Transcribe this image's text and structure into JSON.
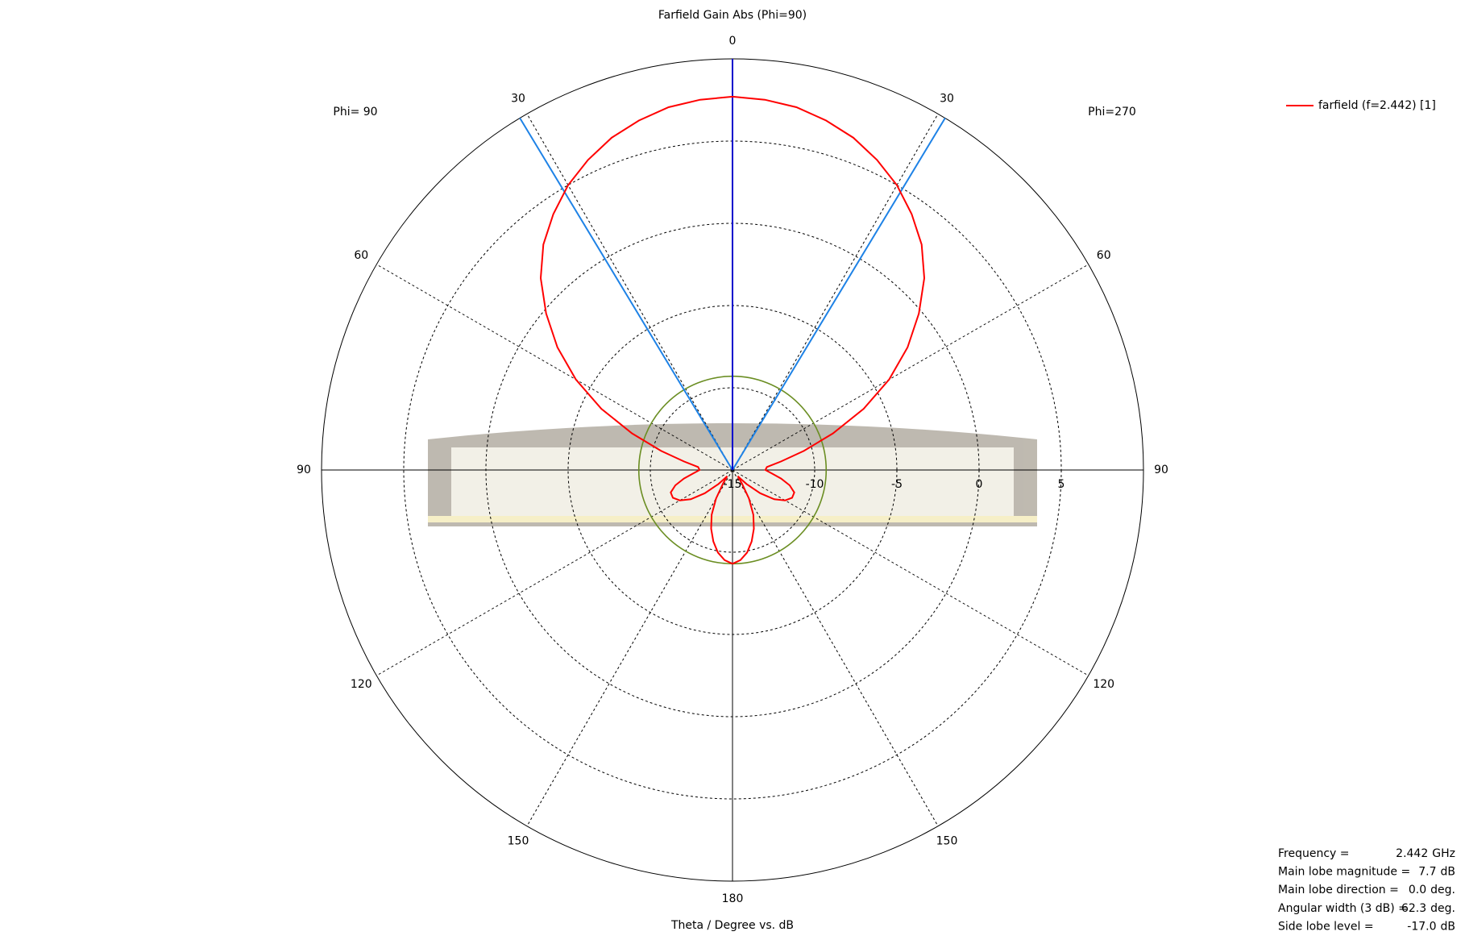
{
  "chart_data": {
    "type": "polar",
    "title": "Farfield Gain Abs (Phi=90)",
    "x_label": "Theta / Degree vs. dB",
    "phi_labels": [
      "Phi= 90",
      "Phi=270"
    ],
    "thetaticks": [
      0,
      30,
      60,
      90,
      120,
      150,
      180
    ],
    "rlim": [
      -15,
      10
    ],
    "rticks": [
      -15,
      -10,
      -5,
      0,
      5
    ],
    "x": [
      -180,
      -175,
      -170,
      -165,
      -160,
      -155,
      -150,
      -145,
      -140,
      -135,
      -130,
      -125,
      -120,
      -115,
      -110,
      -105,
      -100,
      -95,
      -90,
      -85,
      -80,
      -75,
      -70,
      -65,
      -60,
      -55,
      -50,
      -45,
      -40,
      -35,
      -30,
      -25,
      -20,
      -15,
      -10,
      -5,
      0,
      5,
      10,
      15,
      20,
      25,
      30,
      35,
      40,
      45,
      50,
      55,
      60,
      65,
      70,
      75,
      80,
      85,
      90,
      95,
      100,
      105,
      110,
      115,
      120,
      125,
      130,
      135,
      140,
      145,
      150,
      155,
      160,
      165,
      170,
      175,
      180
    ],
    "series": [
      {
        "name": "farfield (f=2.442) [1]",
        "color": "#ff0000",
        "values": [
          -9.3,
          -9.5,
          -9.9,
          -10.5,
          -11.2,
          -12.0,
          -13.0,
          -14.0,
          -14.5,
          -13.8,
          -12.8,
          -11.9,
          -11.3,
          -11.0,
          -11.0,
          -11.4,
          -12.0,
          -12.6,
          -13.0,
          -12.9,
          -12.0,
          -10.5,
          -8.5,
          -6.2,
          -4.0,
          -2.0,
          -0.2,
          1.5,
          2.9,
          4.0,
          5.0,
          5.8,
          6.5,
          7.0,
          7.4,
          7.6,
          7.7,
          7.6,
          7.4,
          7.0,
          6.5,
          5.8,
          5.0,
          4.0,
          2.9,
          1.5,
          -0.2,
          -2.0,
          -4.0,
          -6.2,
          -8.5,
          -10.5,
          -12.0,
          -12.9,
          -13.0,
          -12.6,
          -12.0,
          -11.4,
          -11.0,
          -11.0,
          -11.3,
          -11.9,
          -12.8,
          -13.8,
          -14.5,
          -14.0,
          -13.0,
          -12.0,
          -11.2,
          -10.5,
          -9.9,
          -9.5,
          -9.3
        ]
      }
    ],
    "info": [
      {
        "label": "Frequency =",
        "value": 2.442,
        "unit": "GHz"
      },
      {
        "label": "Main lobe magnitude =",
        "value": 7.7,
        "unit": "dB"
      },
      {
        "label": "Main lobe direction =",
        "value": 0,
        "value_label": "0.0",
        "unit": "deg."
      },
      {
        "label": "Angular width (3 dB) =",
        "value": 62.3,
        "unit": "deg."
      },
      {
        "label": "Side lobe level =",
        "value": -17,
        "value_label": "-17.0",
        "unit": "dB"
      }
    ],
    "direction_color": "#0000cc",
    "beamwidth_color": "#1e82e6",
    "sidelobe_color": "#6b8e23"
  }
}
